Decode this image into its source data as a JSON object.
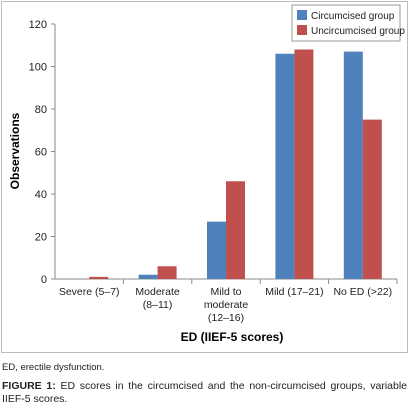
{
  "chart_data": {
    "type": "bar",
    "categories": [
      [
        "Severe (5–7)"
      ],
      [
        "Moderate",
        "(8–11)"
      ],
      [
        "Mild to",
        "moderate",
        "(12–16)"
      ],
      [
        "Mild (17–21)"
      ],
      [
        "No ED (>22)"
      ]
    ],
    "series": [
      {
        "name": "Circumcised group",
        "color": "#4f81bd",
        "values": [
          0,
          2,
          27,
          106,
          107
        ]
      },
      {
        "name": "Uncircumcised group",
        "color": "#c0504d",
        "values": [
          1,
          6,
          46,
          108,
          75
        ]
      }
    ],
    "xlabel": "ED (IIEF-5 scores)",
    "ylabel": "Observations",
    "ylim": [
      0,
      120
    ],
    "yticks": [
      0,
      20,
      40,
      60,
      80,
      100,
      120
    ],
    "legend": "top-right",
    "grid": false
  },
  "footnote": "ED, erectile dysfunction.",
  "caption": {
    "label": "FIGURE 1:",
    "text": " ED scores in the circumcised and the non-circumcised groups, variable IIEF-5 scores."
  }
}
